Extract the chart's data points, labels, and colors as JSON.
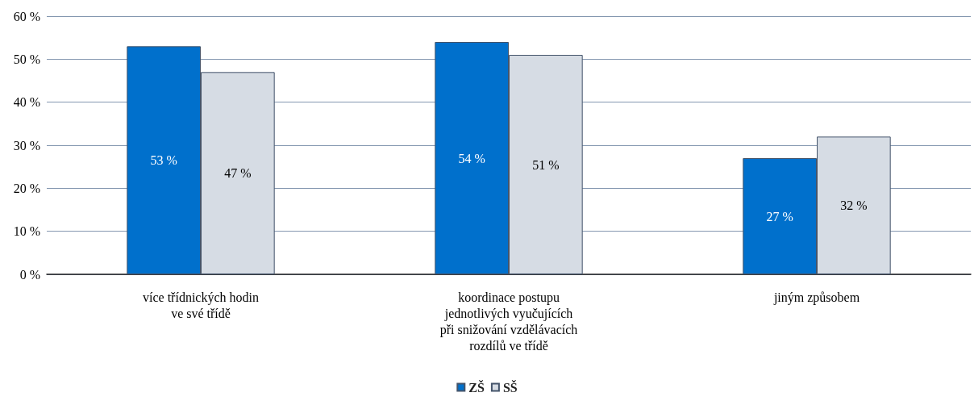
{
  "chart_data": {
    "type": "bar",
    "categories": [
      "více třídnických hodin\nve své třídě",
      "koordinace postupu\njednotlivých vyučujících\npři snižování vzdělávacích\nrozdílů ve třídě",
      "jiným způsobem"
    ],
    "series": [
      {
        "name": "ZŠ",
        "color": "#0070cc",
        "values": [
          53,
          54,
          27
        ],
        "value_labels": [
          "53 %",
          "54 %",
          "27 %"
        ]
      },
      {
        "name": "SŠ",
        "color": "#d6dce4",
        "values": [
          47,
          51,
          32
        ],
        "value_labels": [
          "47 %",
          "51 %",
          "32 %"
        ]
      }
    ],
    "ylim": [
      0,
      60
    ],
    "yticks": [
      {
        "value": 0,
        "label": "0 %"
      },
      {
        "value": 10,
        "label": "10 %"
      },
      {
        "value": 20,
        "label": "20 %"
      },
      {
        "value": 30,
        "label": "30 %"
      },
      {
        "value": 40,
        "label": "40 %"
      },
      {
        "value": 50,
        "label": "50 %"
      },
      {
        "value": 60,
        "label": "60 %"
      }
    ],
    "grid": "y",
    "legend": "bottom"
  }
}
